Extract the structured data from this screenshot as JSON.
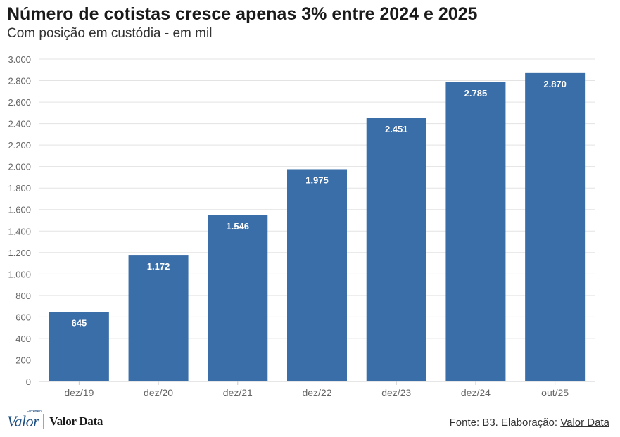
{
  "header": {
    "title": "Número de cotistas cresce apenas 3% entre 2024 e 2025",
    "subtitle": "Com posição em custódia - em mil"
  },
  "footer": {
    "logo_main": "Valor",
    "logo_tagline": "Econômico",
    "logo_secondary": "Valor Data",
    "source_prefix": "Fonte: B3. Elaboração: ",
    "source_link": "Valor Data"
  },
  "colors": {
    "bar": "#3a6ea8",
    "grid": "#e3e3e3",
    "axis_text": "#666666",
    "label": "#ffffff"
  },
  "chart_data": {
    "type": "bar",
    "categories": [
      "dez/19",
      "dez/20",
      "dez/21",
      "dez/22",
      "dez/23",
      "dez/24",
      "out/25"
    ],
    "values": [
      645,
      1172,
      1546,
      1975,
      2451,
      2785,
      2870
    ],
    "value_labels": [
      "645",
      "1.172",
      "1.546",
      "1.975",
      "2.451",
      "2.785",
      "2.870"
    ],
    "yticks": [
      0,
      200,
      400,
      600,
      800,
      1000,
      1200,
      1400,
      1600,
      1800,
      2000,
      2200,
      2400,
      2600,
      2800,
      3000
    ],
    "ytick_labels": [
      "0",
      "200",
      "400",
      "600",
      "800",
      "1.000",
      "1.200",
      "1.400",
      "1.600",
      "1.800",
      "2.000",
      "2.200",
      "2.400",
      "2.600",
      "2.800",
      "3.000"
    ],
    "ylim": [
      0,
      3000
    ],
    "title": "Número de cotistas cresce apenas 3% entre 2024 e 2025",
    "subtitle": "Com posição em custódia - em mil",
    "xlabel": "",
    "ylabel": "",
    "grid": true,
    "legend": "none"
  }
}
